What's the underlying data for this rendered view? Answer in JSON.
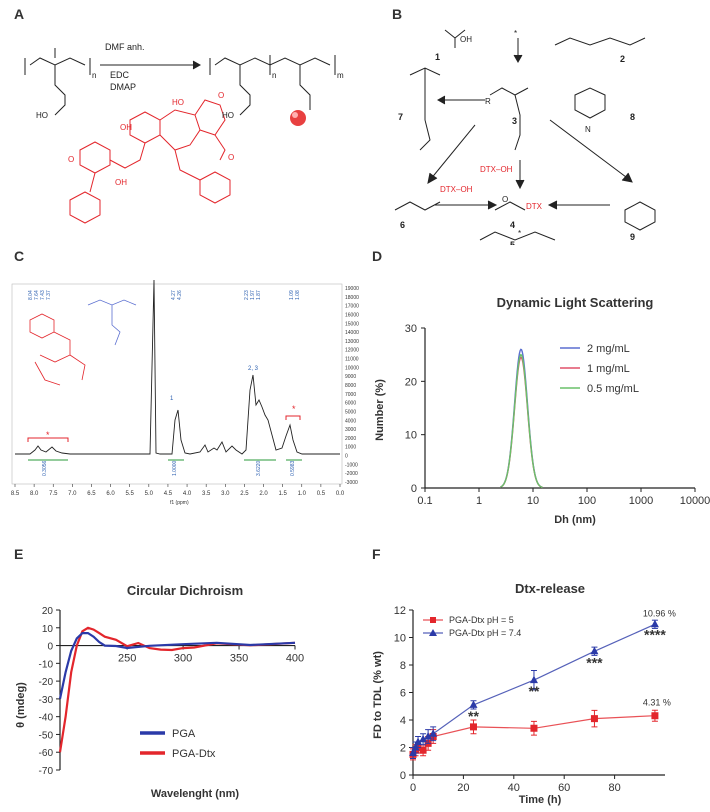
{
  "panels": {
    "A": {
      "letter": "A",
      "reagent_top": "DMF anh.",
      "reagent_bottom_1": "EDC",
      "reagent_bottom_2": "DMAP",
      "sub_n": "n",
      "sub_m": "m",
      "ho_left": "HO",
      "ho_right": "HO"
    },
    "B": {
      "letter": "B",
      "compound_numbers": [
        "1",
        "2",
        "3",
        "4",
        "5",
        "6",
        "7",
        "8",
        "9"
      ],
      "dtx_oh_1": "DTX–OH",
      "dtx_oh_2": "DTX–OH",
      "dtx_label": "DTX",
      "oh_label": "OH",
      "n_label": "N",
      "r_label": "R",
      "o_label": "O",
      "star": "*"
    },
    "C": {
      "letter": "C",
      "x_ticks": [
        "8.5",
        "8.0",
        "7.5",
        "7.0",
        "6.5",
        "6.0",
        "5.5",
        "5.0",
        "4.5",
        "4.0",
        "3.5",
        "3.0",
        "2.5",
        "2.0",
        "1.5",
        "1.0",
        "0.5",
        "0.0"
      ],
      "x_label": "f1 (ppm)",
      "y_ticks": [
        "19000",
        "18000",
        "17000",
        "16000",
        "15000",
        "14000",
        "13000",
        "12000",
        "11000",
        "10000",
        "9000",
        "8000",
        "7000",
        "6000",
        "5000",
        "4000",
        "3000",
        "2000",
        "1000",
        "0",
        "-1000",
        "-2000",
        "-3000"
      ],
      "peak_labels": [
        "8.04",
        "7.64",
        "7.43",
        "7.37",
        "4.27",
        "4.26",
        "2.23",
        "1.97",
        "1.87",
        "1.09",
        "1.08"
      ],
      "integrals": [
        "0.3056",
        "1.0000",
        "3.6220",
        "0.5983"
      ],
      "annotations": [
        "*",
        "1",
        "2, 3",
        "*"
      ]
    },
    "D": {
      "letter": "D"
    },
    "E": {
      "letter": "E"
    },
    "F": {
      "letter": "F"
    }
  },
  "chart_data": [
    {
      "panel": "D",
      "type": "line",
      "title": "Dynamic Light Scattering",
      "xlabel": "Dh (nm)",
      "ylabel": "Number (%)",
      "xscale": "log",
      "xlim": [
        0.1,
        10000
      ],
      "ylim": [
        0,
        30
      ],
      "x_tick_labels": [
        "0.1",
        "1",
        "10",
        "100",
        "1000",
        "10000"
      ],
      "y_tick_labels": [
        "0",
        "10",
        "20",
        "30"
      ],
      "legend_position": "top-right",
      "series": [
        {
          "name": "2 mg/mL",
          "color": "#5b6fd0",
          "peak_x": 6.0,
          "peak_y": 26
        },
        {
          "name": "1 mg/mL",
          "color": "#e0506a",
          "peak_x": 6.0,
          "peak_y": 24.5
        },
        {
          "name": "0.5 mg/mL",
          "color": "#6ac06a",
          "peak_x": 6.0,
          "peak_y": 25
        }
      ]
    },
    {
      "panel": "E",
      "type": "line",
      "title": "Circular Dichroism",
      "xlabel": "Wavelenght (nm)",
      "ylabel": "θ (mdeg)",
      "xlim": [
        190,
        400
      ],
      "ylim": [
        -70,
        20
      ],
      "x_tick_labels": [
        "250",
        "300",
        "350",
        "400"
      ],
      "y_tick_labels": [
        "20",
        "10",
        "0",
        "-10",
        "-20",
        "-30",
        "-40",
        "-50",
        "-60",
        "-70"
      ],
      "legend_position": "bottom-center",
      "series": [
        {
          "name": "PGA",
          "color": "#2b3aa8",
          "x": [
            190,
            195,
            200,
            205,
            210,
            215,
            220,
            225,
            230,
            240,
            250,
            270,
            300,
            330,
            360,
            400
          ],
          "y": [
            -30,
            -15,
            -3,
            4,
            7,
            7,
            5,
            2,
            0,
            -0.5,
            0,
            0.3,
            0.2,
            0,
            0.2,
            0
          ]
        },
        {
          "name": "PGA-Dtx",
          "color": "#e3262c",
          "x": [
            190,
            195,
            200,
            205,
            210,
            215,
            220,
            225,
            230,
            240,
            250,
            260,
            270,
            280,
            290,
            300,
            310,
            330,
            360,
            400
          ],
          "y": [
            -60,
            -40,
            -15,
            0,
            8,
            10,
            9,
            7,
            5,
            3,
            1,
            0,
            -1,
            -2,
            -2.5,
            -2,
            -1,
            -0.3,
            0,
            0
          ]
        }
      ]
    },
    {
      "panel": "F",
      "type": "line",
      "title": "Dtx-release",
      "xlabel": "Time (h)",
      "ylabel": "FD to TDL (% wt)",
      "xlim": [
        0,
        100
      ],
      "ylim": [
        0,
        12
      ],
      "x_tick_labels": [
        "0",
        "20",
        "40",
        "60",
        "80"
      ],
      "y_tick_labels": [
        "0",
        "2",
        "4",
        "6",
        "8",
        "10",
        "12"
      ],
      "legend_position": "top-left",
      "series": [
        {
          "name": "PGA-Dtx pH = 5",
          "color": "#e3262c",
          "marker": "square",
          "x": [
            0,
            1,
            2,
            4,
            6,
            8,
            24,
            48,
            72,
            96
          ],
          "y": [
            1.5,
            1.8,
            2.0,
            1.8,
            2.3,
            2.8,
            3.5,
            3.4,
            4.1,
            4.31
          ],
          "err": [
            0.4,
            0.4,
            0.4,
            0.4,
            0.5,
            0.5,
            0.5,
            0.5,
            0.6,
            0.4
          ]
        },
        {
          "name": "PGA-Dtx pH = 7.4",
          "color": "#2b3aa8",
          "marker": "triangle",
          "x": [
            0,
            1,
            2,
            4,
            6,
            8,
            24,
            48,
            72,
            96
          ],
          "y": [
            1.6,
            2.0,
            2.4,
            2.6,
            2.8,
            3.0,
            5.1,
            6.9,
            9.0,
            10.96
          ],
          "err": [
            0.4,
            0.4,
            0.4,
            0.4,
            0.5,
            0.5,
            0.3,
            0.7,
            0.3,
            0.3
          ]
        }
      ],
      "annotations": [
        {
          "text": "10.96 %",
          "x": 96,
          "y": 10.96
        },
        {
          "text": "4.31 %",
          "x": 96,
          "y": 4.31
        },
        {
          "text": "**",
          "x": 24,
          "y": 5.1
        },
        {
          "text": "**",
          "x": 48,
          "y": 6.9
        },
        {
          "text": "***",
          "x": 72,
          "y": 9.0
        },
        {
          "text": "****",
          "x": 96,
          "y": 10.96
        }
      ]
    }
  ]
}
